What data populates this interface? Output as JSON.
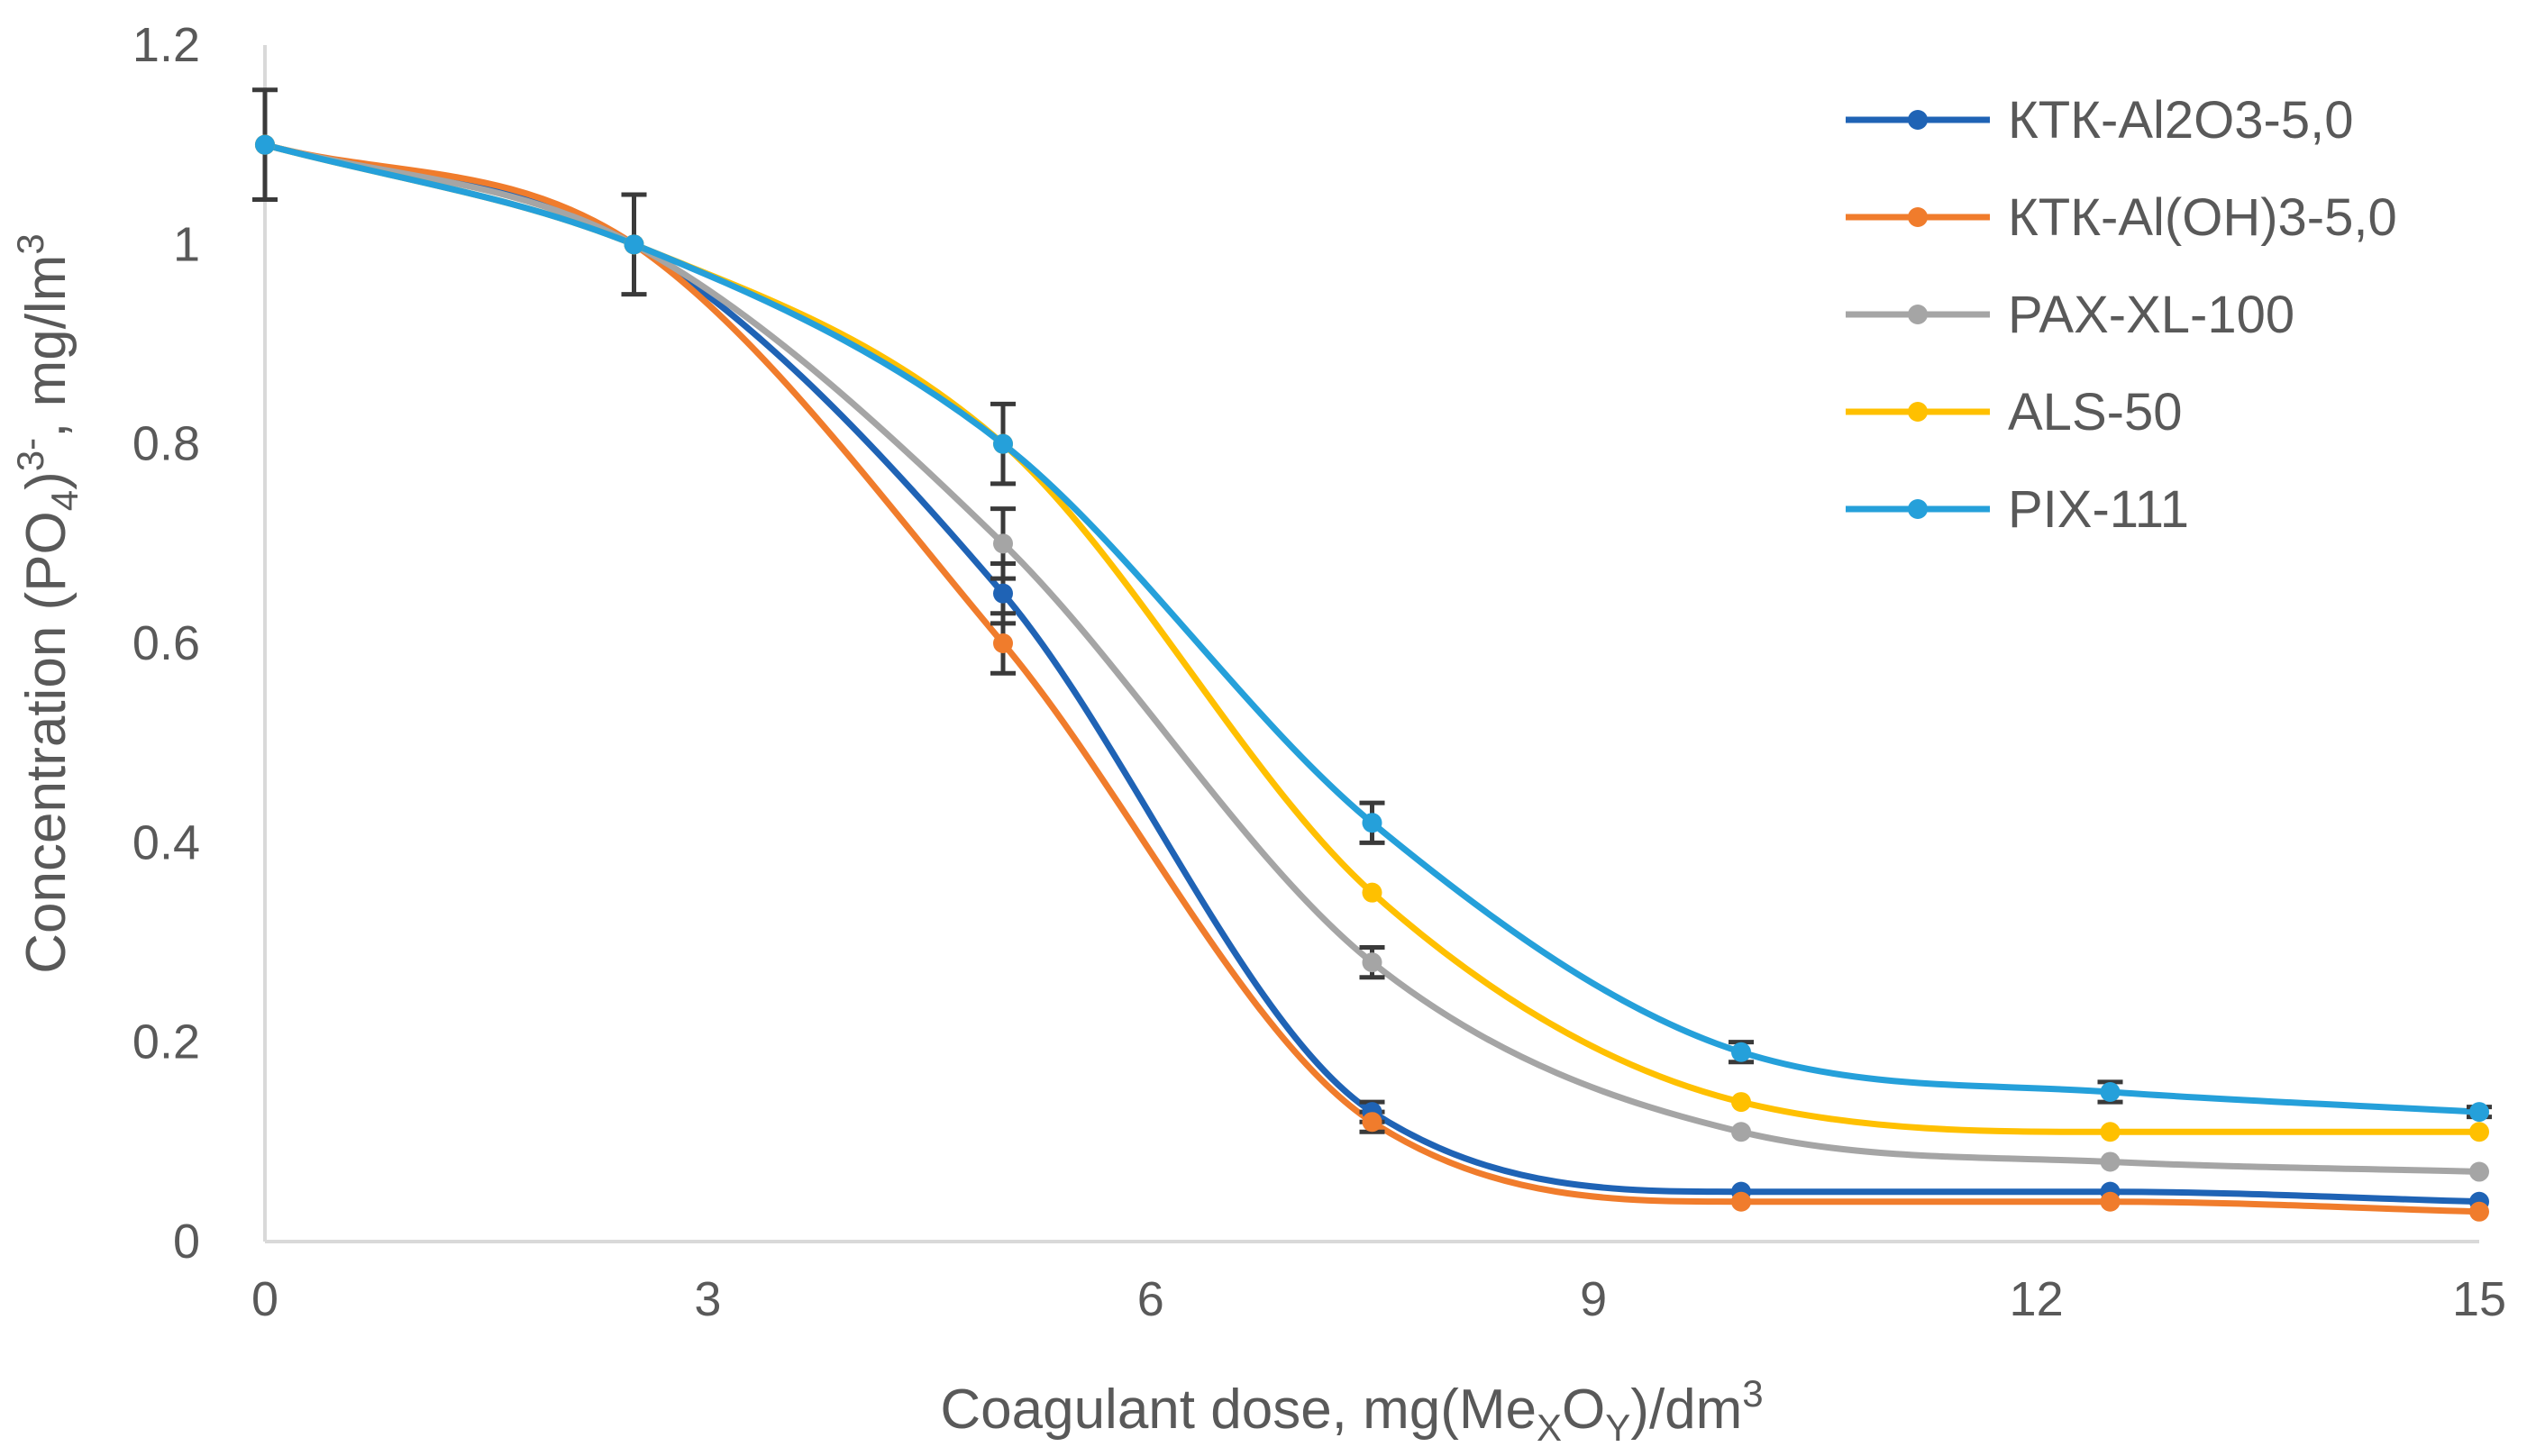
{
  "chart_data": {
    "type": "line",
    "title": "",
    "xlabel": {
      "prefix": "Coagulant dose, mg(Me",
      "sub1": "X",
      "mid": "O",
      "sub2": "Y",
      "suffix": ")/dm",
      "sup": "3"
    },
    "ylabel": {
      "prefix": "Concentration (PO",
      "sub": "4",
      "mid": ")",
      "sup1": "3-",
      "suffix": ", mg/lm",
      "sup2": "3"
    },
    "xlim": [
      0,
      15
    ],
    "ylim": [
      0,
      1.2
    ],
    "xticks": [
      0,
      3,
      6,
      9,
      12,
      15
    ],
    "yticks": [
      {
        "value": 0,
        "label": "0"
      },
      {
        "value": 0.2,
        "label": "0.2"
      },
      {
        "value": 0.4,
        "label": "0.4"
      },
      {
        "value": 0.6,
        "label": "0.6"
      },
      {
        "value": 0.8,
        "label": "0.8"
      },
      {
        "value": 1.0,
        "label": "1"
      },
      {
        "value": 1.2,
        "label": "1.2"
      }
    ],
    "x": [
      0,
      2.5,
      5,
      7.5,
      10,
      12.5,
      15
    ],
    "series": [
      {
        "name": "КТК-Al2O3-5,0",
        "color": "#1F63B5",
        "values": [
          1.1,
          1.0,
          0.65,
          0.13,
          0.05,
          0.05,
          0.04
        ],
        "errors": [
          0,
          0,
          0.03,
          0.01,
          0,
          0,
          0
        ]
      },
      {
        "name": "КТК-Al(OH)3-5,0",
        "color": "#F07C2C",
        "values": [
          1.1,
          1.0,
          0.6,
          0.12,
          0.04,
          0.04,
          0.03
        ],
        "errors": [
          0,
          0,
          0.03,
          0.01,
          0,
          0,
          0
        ]
      },
      {
        "name": "PAX-XL-100",
        "color": "#A5A5A5",
        "values": [
          1.1,
          1.0,
          0.7,
          0.28,
          0.11,
          0.08,
          0.07
        ],
        "errors": [
          0,
          0,
          0.035,
          0.015,
          0,
          0,
          0
        ]
      },
      {
        "name": "ALS-50",
        "color": "#FFC000",
        "values": [
          1.1,
          1.0,
          0.8,
          0.35,
          0.14,
          0.11,
          0.11
        ],
        "errors": [
          0,
          0,
          0,
          0,
          0,
          0,
          0
        ]
      },
      {
        "name": "PIX-111",
        "color": "#25A0DA",
        "values": [
          1.1,
          1.0,
          0.8,
          0.42,
          0.19,
          0.15,
          0.13
        ],
        "errors": [
          0.055,
          0.05,
          0.04,
          0.02,
          0.01,
          0.01,
          0.005
        ]
      }
    ],
    "error_bar_color": "#3A3A3A",
    "grid": false,
    "legend_position": "top-right"
  }
}
